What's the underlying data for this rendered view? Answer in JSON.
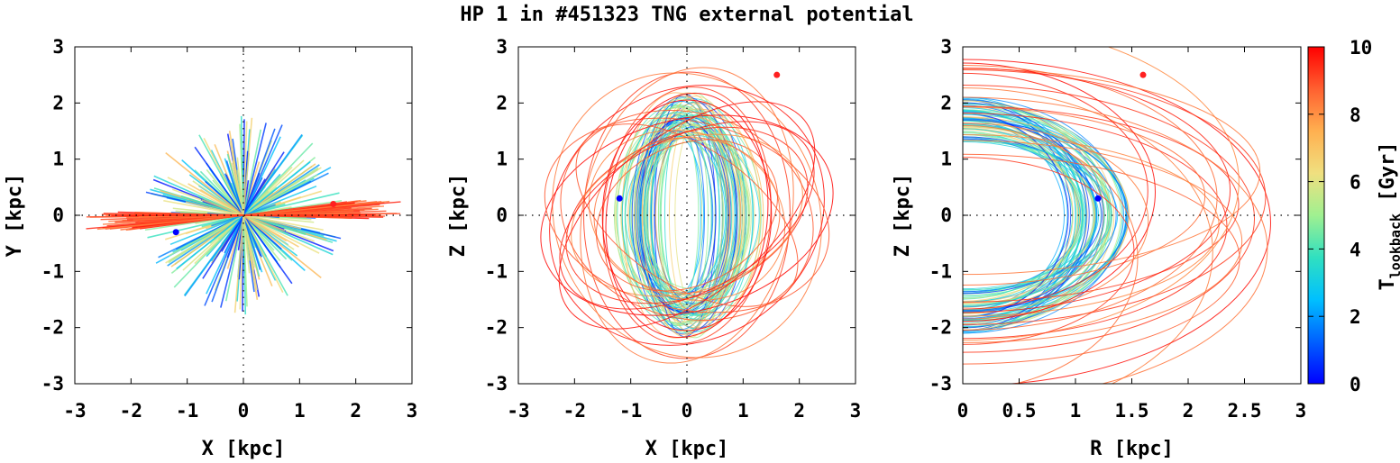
{
  "title": "HP 1 in #451323 TNG external potential",
  "colors": {
    "start_point": "#ff2020",
    "end_point": "#0000ff",
    "frame": "#000000"
  },
  "colorbar": {
    "label_main": "T",
    "label_sub": "lookback",
    "label_unit": " [Gyr]",
    "ticks": [
      "0",
      "2",
      "4",
      "6",
      "8",
      "10"
    ],
    "range": [
      0,
      10
    ],
    "palette": [
      "#0000ff",
      "#0060ff",
      "#00c0ff",
      "#30e0c0",
      "#a0f090",
      "#f0e080",
      "#ffb050",
      "#ff6030",
      "#ff0000"
    ]
  },
  "chart_data": [
    {
      "type": "scatter",
      "name": "xy-projection",
      "xlabel": "X [kpc]",
      "ylabel": "Y [kpc]",
      "xlim": [
        -3,
        3
      ],
      "ylim": [
        -3,
        3
      ],
      "xticks": [
        "-3",
        "-2",
        "-1",
        "0",
        "1",
        "2",
        "3"
      ],
      "yticks": [
        "-3",
        "-2",
        "-1",
        "0",
        "1",
        "2",
        "3"
      ],
      "start_point": [
        1.6,
        0.2
      ],
      "end_point": [
        -1.2,
        -0.3
      ],
      "zero_lines": true
    },
    {
      "type": "scatter",
      "name": "xz-projection",
      "xlabel": "X [kpc]",
      "ylabel": "Z [kpc]",
      "xlim": [
        -3,
        3
      ],
      "ylim": [
        -3,
        3
      ],
      "xticks": [
        "-3",
        "-2",
        "-1",
        "0",
        "1",
        "2",
        "3"
      ],
      "yticks": [
        "-3",
        "-2",
        "-1",
        "0",
        "1",
        "2",
        "3"
      ],
      "start_point": [
        1.6,
        2.5
      ],
      "end_point": [
        -1.2,
        0.3
      ],
      "zero_lines": true
    },
    {
      "type": "scatter",
      "name": "rz-projection",
      "xlabel": "R [kpc]",
      "ylabel": "Z [kpc]",
      "xlim": [
        0,
        3
      ],
      "ylim": [
        -3,
        3
      ],
      "xticks": [
        "0",
        "0.5",
        "1",
        "1.5",
        "2",
        "2.5",
        "3"
      ],
      "yticks": [
        "-3",
        "-2",
        "-1",
        "0",
        "1",
        "2",
        "3"
      ],
      "start_point": [
        1.6,
        2.5
      ],
      "end_point": [
        1.2,
        0.3
      ],
      "zero_lines": true
    }
  ]
}
